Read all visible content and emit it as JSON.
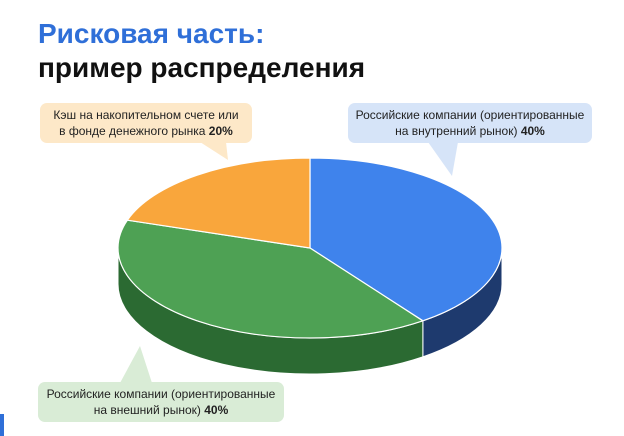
{
  "title_line1": "Рисковая часть:",
  "title_line2": "пример распределения",
  "colors": {
    "title_accent": "#2f6fd8",
    "blue": "#3f83ec",
    "blue_side": "#1e3a6e",
    "green": "#4ea154",
    "green_side": "#2b6a32",
    "orange": "#f9a63c",
    "callout_orange": "#fde8c8",
    "callout_blue": "#d6e4f8",
    "callout_green": "#d9ecd6"
  },
  "chart_data": {
    "type": "pie",
    "style": "3d",
    "slices": [
      {
        "label": "Российские компании (ориентированные на внутренний рынок)",
        "value": 40,
        "display": "40%",
        "color": "#3f83ec"
      },
      {
        "label": "Российские компании (ориентированные на внешний рынок)",
        "value": 40,
        "display": "40%",
        "color": "#4ea154"
      },
      {
        "label": "Кэш на накопительном счете или в фонде денежного рынка",
        "value": 20,
        "display": "20%",
        "color": "#f9a63c"
      }
    ]
  },
  "callouts": {
    "cash": {
      "line1": "Кэш на накопительном  счете или",
      "line2": "в фонде  денежного  рынка",
      "pct": "20%"
    },
    "domestic": {
      "line1": "Российские компании  (ориентированные",
      "line2": "на внутренний  рынок)",
      "pct": "40%"
    },
    "export": {
      "line1": "Российские компании  (ориентированные",
      "line2": "на внешний  рынок)",
      "pct": "40%"
    }
  }
}
